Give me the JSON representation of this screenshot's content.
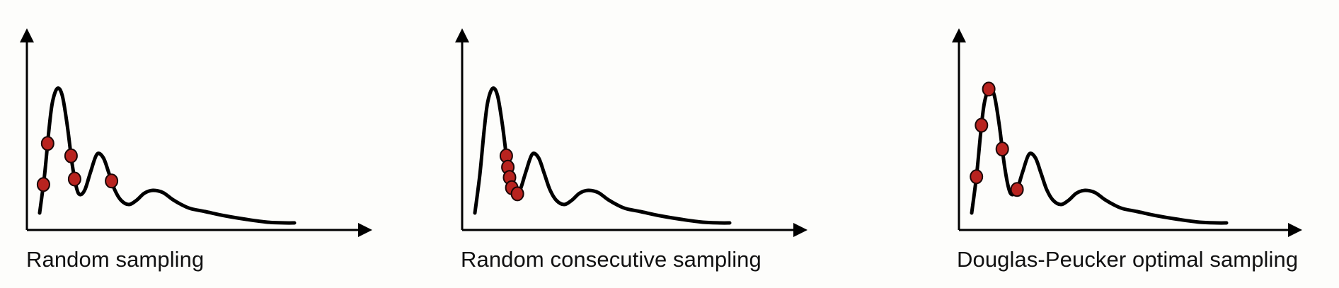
{
  "colors": {
    "background": "#fdfdfb",
    "curve": "#000000",
    "axis": "#000000",
    "sample_fill": "#b8231f",
    "sample_stroke": "#1a0505"
  },
  "panels": [
    {
      "caption": "Random sampling",
      "sample_t": [
        0.055,
        0.134,
        0.377,
        0.422,
        0.604
      ]
    },
    {
      "caption": "Random consecutive sampling",
      "sample_t": [
        0.377,
        0.399,
        0.419,
        0.439,
        0.459
      ]
    },
    {
      "caption": "Douglas-Peucker optimal sampling",
      "sample_t": [
        0.07,
        0.169,
        0.24,
        0.364,
        0.469
      ]
    }
  ]
}
